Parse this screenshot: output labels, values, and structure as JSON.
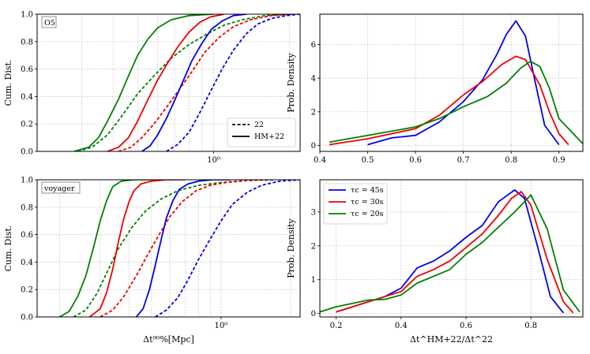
{
  "colors": {
    "blue": "#0000ee",
    "red": "#ee0000",
    "green": "#008000"
  },
  "chart_data": [
    {
      "id": "p0",
      "type": "line",
      "xscale": "log",
      "xlim": [
        0.2,
        2.2
      ],
      "ylim": [
        0,
        1
      ],
      "ylabel": "Cum. Dist.",
      "xlabel": "",
      "grid": true,
      "tag": "O5",
      "yticks": [
        {
          "v": 0.0,
          "label": "0.0"
        },
        {
          "v": 0.2,
          "label": "0.2"
        },
        {
          "v": 0.4,
          "label": "0.4"
        },
        {
          "v": 0.6,
          "label": "0.6"
        },
        {
          "v": 0.8,
          "label": "0.8"
        },
        {
          "v": 1.0,
          "label": "1.0"
        }
      ],
      "xticks": [
        {
          "v": 1.0,
          "label": "10⁰"
        }
      ],
      "legend": {
        "placement": "lower-right",
        "entries": [
          {
            "label": "22",
            "dash": true
          },
          {
            "label": "HM+22",
            "dash": false
          }
        ]
      },
      "series": [
        {
          "color": "green",
          "dash": false,
          "x": [
            0.28,
            0.32,
            0.35,
            0.38,
            0.42,
            0.46,
            0.5,
            0.55,
            0.6,
            0.68,
            0.8,
            1.0
          ],
          "y": [
            0,
            0.03,
            0.1,
            0.22,
            0.38,
            0.55,
            0.7,
            0.82,
            0.9,
            0.96,
            0.99,
            1.0
          ]
        },
        {
          "color": "green",
          "dash": true,
          "x": [
            0.29,
            0.33,
            0.38,
            0.43,
            0.5,
            0.58,
            0.68,
            0.8,
            0.95,
            1.1,
            1.3,
            1.6,
            2.0
          ],
          "y": [
            0,
            0.03,
            0.12,
            0.25,
            0.42,
            0.55,
            0.68,
            0.78,
            0.86,
            0.92,
            0.96,
            0.99,
            1.0
          ]
        },
        {
          "color": "red",
          "dash": false,
          "x": [
            0.38,
            0.42,
            0.46,
            0.5,
            0.55,
            0.6,
            0.66,
            0.72,
            0.8,
            0.88,
            0.97,
            1.1
          ],
          "y": [
            0,
            0.03,
            0.1,
            0.22,
            0.38,
            0.52,
            0.65,
            0.76,
            0.87,
            0.94,
            0.98,
            1.0
          ]
        },
        {
          "color": "red",
          "dash": true,
          "x": [
            0.42,
            0.47,
            0.52,
            0.58,
            0.65,
            0.73,
            0.82,
            0.92,
            1.05,
            1.2,
            1.4,
            1.7,
            2.05
          ],
          "y": [
            0,
            0.03,
            0.1,
            0.2,
            0.32,
            0.45,
            0.58,
            0.72,
            0.83,
            0.91,
            0.96,
            0.99,
            1.0
          ]
        },
        {
          "color": "blue",
          "dash": false,
          "x": [
            0.52,
            0.56,
            0.6,
            0.65,
            0.7,
            0.76,
            0.82,
            0.9,
            0.98,
            1.08,
            1.2,
            1.35
          ],
          "y": [
            0,
            0.04,
            0.12,
            0.24,
            0.37,
            0.52,
            0.66,
            0.79,
            0.89,
            0.95,
            0.99,
            1.0
          ]
        },
        {
          "color": "blue",
          "dash": true,
          "x": [
            0.65,
            0.72,
            0.8,
            0.88,
            0.98,
            1.08,
            1.2,
            1.35,
            1.5,
            1.7,
            1.95,
            2.2
          ],
          "y": [
            0,
            0.05,
            0.14,
            0.28,
            0.45,
            0.6,
            0.74,
            0.86,
            0.93,
            0.97,
            0.99,
            1.0
          ]
        }
      ]
    },
    {
      "id": "p1",
      "type": "line",
      "xscale": "linear",
      "xlim": [
        0.4,
        0.95
      ],
      "ylim": [
        -0.35,
        7.8
      ],
      "ylabel": "Prob. Density",
      "xlabel": "",
      "grid": true,
      "yticks": [
        {
          "v": 0,
          "label": "0"
        },
        {
          "v": 2,
          "label": "2"
        },
        {
          "v": 4,
          "label": "4"
        },
        {
          "v": 6,
          "label": "6"
        }
      ],
      "xticks": [
        {
          "v": 0.4,
          "label": "0.4"
        },
        {
          "v": 0.5,
          "label": "0.5"
        },
        {
          "v": 0.6,
          "label": "0.6"
        },
        {
          "v": 0.7,
          "label": "0.7"
        },
        {
          "v": 0.8,
          "label": "0.8"
        },
        {
          "v": 0.9,
          "label": "0.9"
        }
      ],
      "series": [
        {
          "color": "blue",
          "dash": false,
          "x": [
            0.5,
            0.55,
            0.6,
            0.65,
            0.7,
            0.74,
            0.77,
            0.79,
            0.81,
            0.83,
            0.85,
            0.87,
            0.9
          ],
          "y": [
            0.05,
            0.45,
            0.6,
            1.4,
            2.6,
            3.9,
            5.4,
            6.6,
            7.4,
            6.5,
            3.8,
            1.2,
            0.05
          ]
        },
        {
          "color": "red",
          "dash": false,
          "x": [
            0.42,
            0.5,
            0.6,
            0.65,
            0.7,
            0.74,
            0.78,
            0.81,
            0.83,
            0.86,
            0.88,
            0.9,
            0.92
          ],
          "y": [
            0.05,
            0.4,
            1.0,
            1.8,
            3.0,
            3.8,
            4.8,
            5.3,
            5.1,
            3.6,
            2.0,
            0.7,
            0.05
          ]
        },
        {
          "color": "green",
          "dash": false,
          "x": [
            0.42,
            0.5,
            0.6,
            0.65,
            0.7,
            0.75,
            0.79,
            0.82,
            0.84,
            0.86,
            0.88,
            0.9,
            0.95
          ],
          "y": [
            0.2,
            0.6,
            1.1,
            1.6,
            2.3,
            2.9,
            3.7,
            4.6,
            5.0,
            4.7,
            3.4,
            1.6,
            0.1
          ]
        }
      ]
    },
    {
      "id": "p2",
      "type": "line",
      "xscale": "log",
      "xlim": [
        0.16,
        2.2
      ],
      "ylim": [
        0,
        1
      ],
      "ylabel": "Cum. Dist.",
      "xlabel": "Δt⁹⁰%[Mpc]",
      "grid": true,
      "tag": "voyager",
      "yticks": [
        {
          "v": 0.0,
          "label": "0.0"
        },
        {
          "v": 0.2,
          "label": "0.2"
        },
        {
          "v": 0.4,
          "label": "0.4"
        },
        {
          "v": 0.6,
          "label": "0.6"
        },
        {
          "v": 0.8,
          "label": "0.8"
        },
        {
          "v": 1.0,
          "label": "1.0"
        }
      ],
      "xticks": [
        {
          "v": 1.0,
          "label": "10⁰"
        }
      ],
      "series": [
        {
          "color": "green",
          "dash": false,
          "x": [
            0.2,
            0.22,
            0.24,
            0.26,
            0.28,
            0.3,
            0.32,
            0.34,
            0.37,
            0.42,
            0.5
          ],
          "y": [
            0,
            0.04,
            0.15,
            0.3,
            0.5,
            0.7,
            0.85,
            0.95,
            0.99,
            1.0,
            1.0
          ]
        },
        {
          "color": "green",
          "dash": true,
          "x": [
            0.23,
            0.26,
            0.29,
            0.32,
            0.36,
            0.41,
            0.47,
            0.55,
            0.65,
            0.8,
            1.0,
            1.3,
            1.7
          ],
          "y": [
            0,
            0.05,
            0.17,
            0.32,
            0.5,
            0.65,
            0.77,
            0.86,
            0.92,
            0.96,
            0.98,
            0.995,
            1.0
          ]
        },
        {
          "color": "red",
          "dash": false,
          "x": [
            0.27,
            0.3,
            0.32,
            0.34,
            0.36,
            0.38,
            0.4,
            0.42,
            0.45,
            0.5,
            0.58,
            0.7
          ],
          "y": [
            0,
            0.06,
            0.18,
            0.35,
            0.55,
            0.72,
            0.84,
            0.92,
            0.97,
            0.99,
            1.0,
            1.0
          ]
        },
        {
          "color": "red",
          "dash": true,
          "x": [
            0.3,
            0.34,
            0.38,
            0.43,
            0.48,
            0.54,
            0.6,
            0.68,
            0.78,
            0.9,
            1.05,
            1.3,
            1.6
          ],
          "y": [
            0,
            0.05,
            0.15,
            0.3,
            0.45,
            0.6,
            0.73,
            0.84,
            0.92,
            0.96,
            0.98,
            0.995,
            1.0
          ]
        },
        {
          "color": "blue",
          "dash": false,
          "x": [
            0.43,
            0.46,
            0.49,
            0.52,
            0.55,
            0.58,
            0.62,
            0.66,
            0.72,
            0.8,
            0.92,
            1.1
          ],
          "y": [
            0,
            0.06,
            0.2,
            0.38,
            0.56,
            0.72,
            0.85,
            0.93,
            0.97,
            0.99,
            1.0,
            1.0
          ]
        },
        {
          "color": "blue",
          "dash": true,
          "x": [
            0.52,
            0.58,
            0.65,
            0.72,
            0.8,
            0.9,
            1.0,
            1.12,
            1.3,
            1.5,
            1.8,
            2.2
          ],
          "y": [
            0,
            0.05,
            0.14,
            0.27,
            0.42,
            0.57,
            0.7,
            0.82,
            0.91,
            0.96,
            0.99,
            1.0
          ]
        }
      ]
    },
    {
      "id": "p3",
      "type": "line",
      "xscale": "linear",
      "xlim": [
        0.15,
        0.96
      ],
      "ylim": [
        -0.1,
        3.95
      ],
      "ylabel": "Prob. Density",
      "xlabel": "Δt^HM+22/Δt^22",
      "grid": true,
      "yticks": [
        {
          "v": 0,
          "label": "0"
        },
        {
          "v": 1,
          "label": "1"
        },
        {
          "v": 2,
          "label": "2"
        },
        {
          "v": 3,
          "label": "3"
        }
      ],
      "xticks": [
        {
          "v": 0.2,
          "label": "0.2"
        },
        {
          "v": 0.4,
          "label": "0.4"
        },
        {
          "v": 0.6,
          "label": "0.6"
        },
        {
          "v": 0.8,
          "label": "0.8"
        }
      ],
      "legend": {
        "placement": "upper-left",
        "entries": [
          {
            "label": "τc = 45s",
            "color": "blue"
          },
          {
            "label": "τc = 30s",
            "color": "red"
          },
          {
            "label": "τc = 20s",
            "color": "green"
          }
        ]
      },
      "series": [
        {
          "color": "blue",
          "dash": false,
          "x": [
            0.2,
            0.3,
            0.35,
            0.4,
            0.45,
            0.5,
            0.55,
            0.6,
            0.65,
            0.7,
            0.75,
            0.78,
            0.82,
            0.86,
            0.9
          ],
          "y": [
            0.05,
            0.35,
            0.5,
            0.75,
            1.35,
            1.55,
            1.85,
            2.25,
            2.6,
            3.3,
            3.65,
            3.4,
            2.0,
            0.5,
            0.02
          ]
        },
        {
          "color": "red",
          "dash": false,
          "x": [
            0.2,
            0.3,
            0.35,
            0.4,
            0.45,
            0.5,
            0.55,
            0.6,
            0.65,
            0.7,
            0.74,
            0.77,
            0.8,
            0.85,
            0.9,
            0.93
          ],
          "y": [
            0.05,
            0.35,
            0.5,
            0.65,
            1.1,
            1.3,
            1.55,
            1.95,
            2.35,
            2.9,
            3.4,
            3.6,
            3.2,
            1.6,
            0.35,
            0.02
          ]
        },
        {
          "color": "green",
          "dash": false,
          "x": [
            0.15,
            0.2,
            0.3,
            0.35,
            0.4,
            0.45,
            0.5,
            0.55,
            0.6,
            0.65,
            0.7,
            0.75,
            0.8,
            0.85,
            0.9,
            0.95
          ],
          "y": [
            0.05,
            0.2,
            0.4,
            0.42,
            0.55,
            0.9,
            1.1,
            1.3,
            1.75,
            2.1,
            2.55,
            3.0,
            3.5,
            2.5,
            0.7,
            0.05
          ]
        }
      ]
    }
  ]
}
